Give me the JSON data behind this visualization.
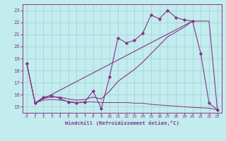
{
  "xlabel": "Windchill (Refroidissement éolien,°C)",
  "bg_color": "#c2ecee",
  "grid_color": "#a0d0d8",
  "line_color": "#883388",
  "xlim": [
    -0.5,
    23.5
  ],
  "ylim": [
    14.5,
    23.5
  ],
  "yticks": [
    15,
    16,
    17,
    18,
    19,
    20,
    21,
    22,
    23
  ],
  "xticks": [
    0,
    1,
    2,
    3,
    4,
    5,
    6,
    7,
    8,
    9,
    10,
    11,
    12,
    13,
    14,
    15,
    16,
    17,
    18,
    19,
    20,
    21,
    22,
    23
  ],
  "curve_main": {
    "x": [
      0,
      1,
      2,
      3,
      4,
      5,
      6,
      7,
      8,
      9,
      10,
      11,
      12,
      13,
      14,
      15,
      16,
      17,
      18,
      19,
      20,
      21,
      22,
      23
    ],
    "y": [
      18.6,
      15.3,
      15.8,
      15.9,
      15.7,
      15.4,
      15.3,
      15.4,
      16.3,
      14.85,
      17.5,
      20.7,
      20.3,
      20.5,
      21.1,
      22.6,
      22.3,
      23.0,
      22.4,
      22.2,
      22.1,
      19.4,
      15.3,
      14.75
    ]
  },
  "curve_smooth": {
    "x": [
      0,
      1,
      2,
      3,
      4,
      5,
      6,
      7,
      8,
      9,
      10,
      11,
      12,
      13,
      14,
      15,
      16,
      17,
      18,
      19,
      20,
      21,
      22,
      23
    ],
    "y": [
      18.6,
      15.3,
      15.7,
      15.8,
      15.8,
      15.65,
      15.55,
      15.6,
      15.8,
      15.65,
      16.3,
      17.1,
      17.6,
      18.1,
      18.7,
      19.4,
      20.1,
      20.8,
      21.2,
      21.6,
      22.1,
      22.1,
      22.1,
      14.75
    ]
  },
  "curve_straight": {
    "x": [
      1,
      20
    ],
    "y": [
      15.3,
      22.1
    ]
  },
  "curve_flat": {
    "x": [
      0,
      1,
      2,
      3,
      4,
      5,
      6,
      7,
      8,
      9,
      10,
      11,
      12,
      13,
      14,
      15,
      16,
      17,
      18,
      19,
      20,
      21,
      22,
      23
    ],
    "y": [
      18.6,
      15.3,
      15.55,
      15.6,
      15.55,
      15.45,
      15.35,
      15.4,
      15.4,
      15.35,
      15.35,
      15.35,
      15.35,
      15.3,
      15.3,
      15.2,
      15.15,
      15.1,
      15.05,
      15.0,
      14.95,
      14.92,
      14.88,
      14.75
    ]
  }
}
